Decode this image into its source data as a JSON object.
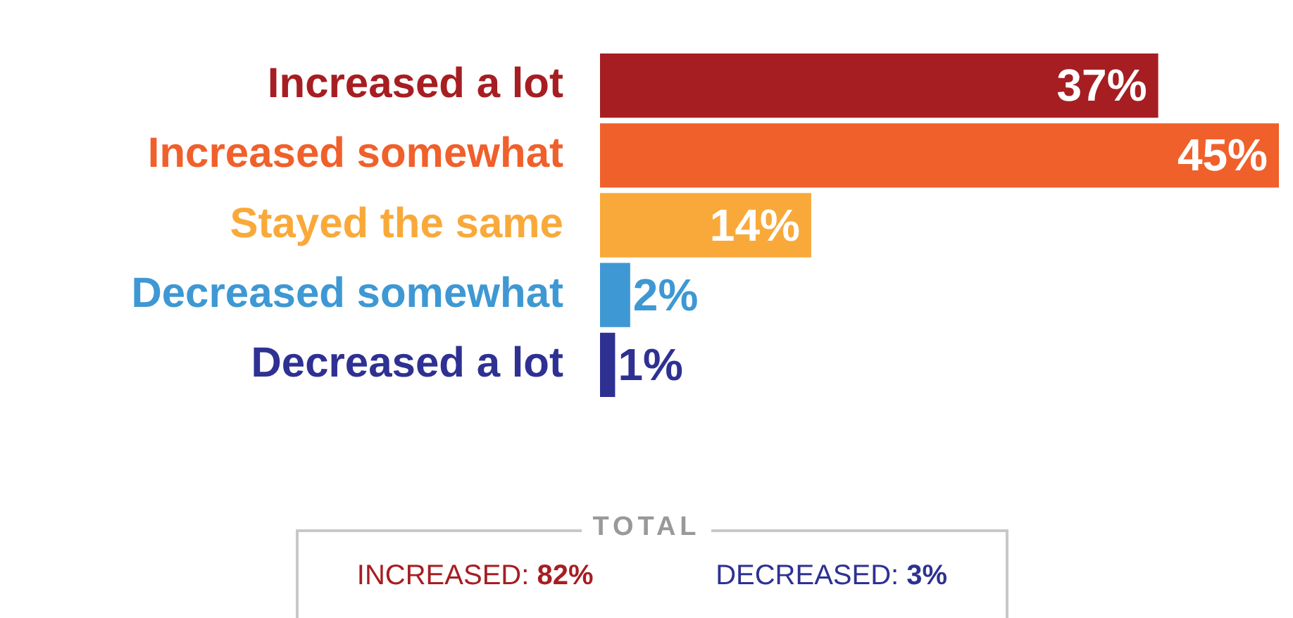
{
  "chart_data": {
    "type": "bar",
    "orientation": "horizontal",
    "categories": [
      "Increased a lot",
      "Increased somewhat",
      "Stayed the same",
      "Decreased somewhat",
      "Decreased a lot"
    ],
    "values": [
      37,
      45,
      14,
      2,
      1
    ],
    "colors": [
      "#a61e22",
      "#f0602b",
      "#f9a93a",
      "#3e98d3",
      "#2e3192"
    ],
    "value_labels": [
      "37%",
      "45%",
      "14%",
      "2%",
      "1%"
    ],
    "tick_labels": "y",
    "annotations": [
      "TOTAL",
      "INCREASED: 82%",
      "DECREASED: 3%"
    ]
  }
}
